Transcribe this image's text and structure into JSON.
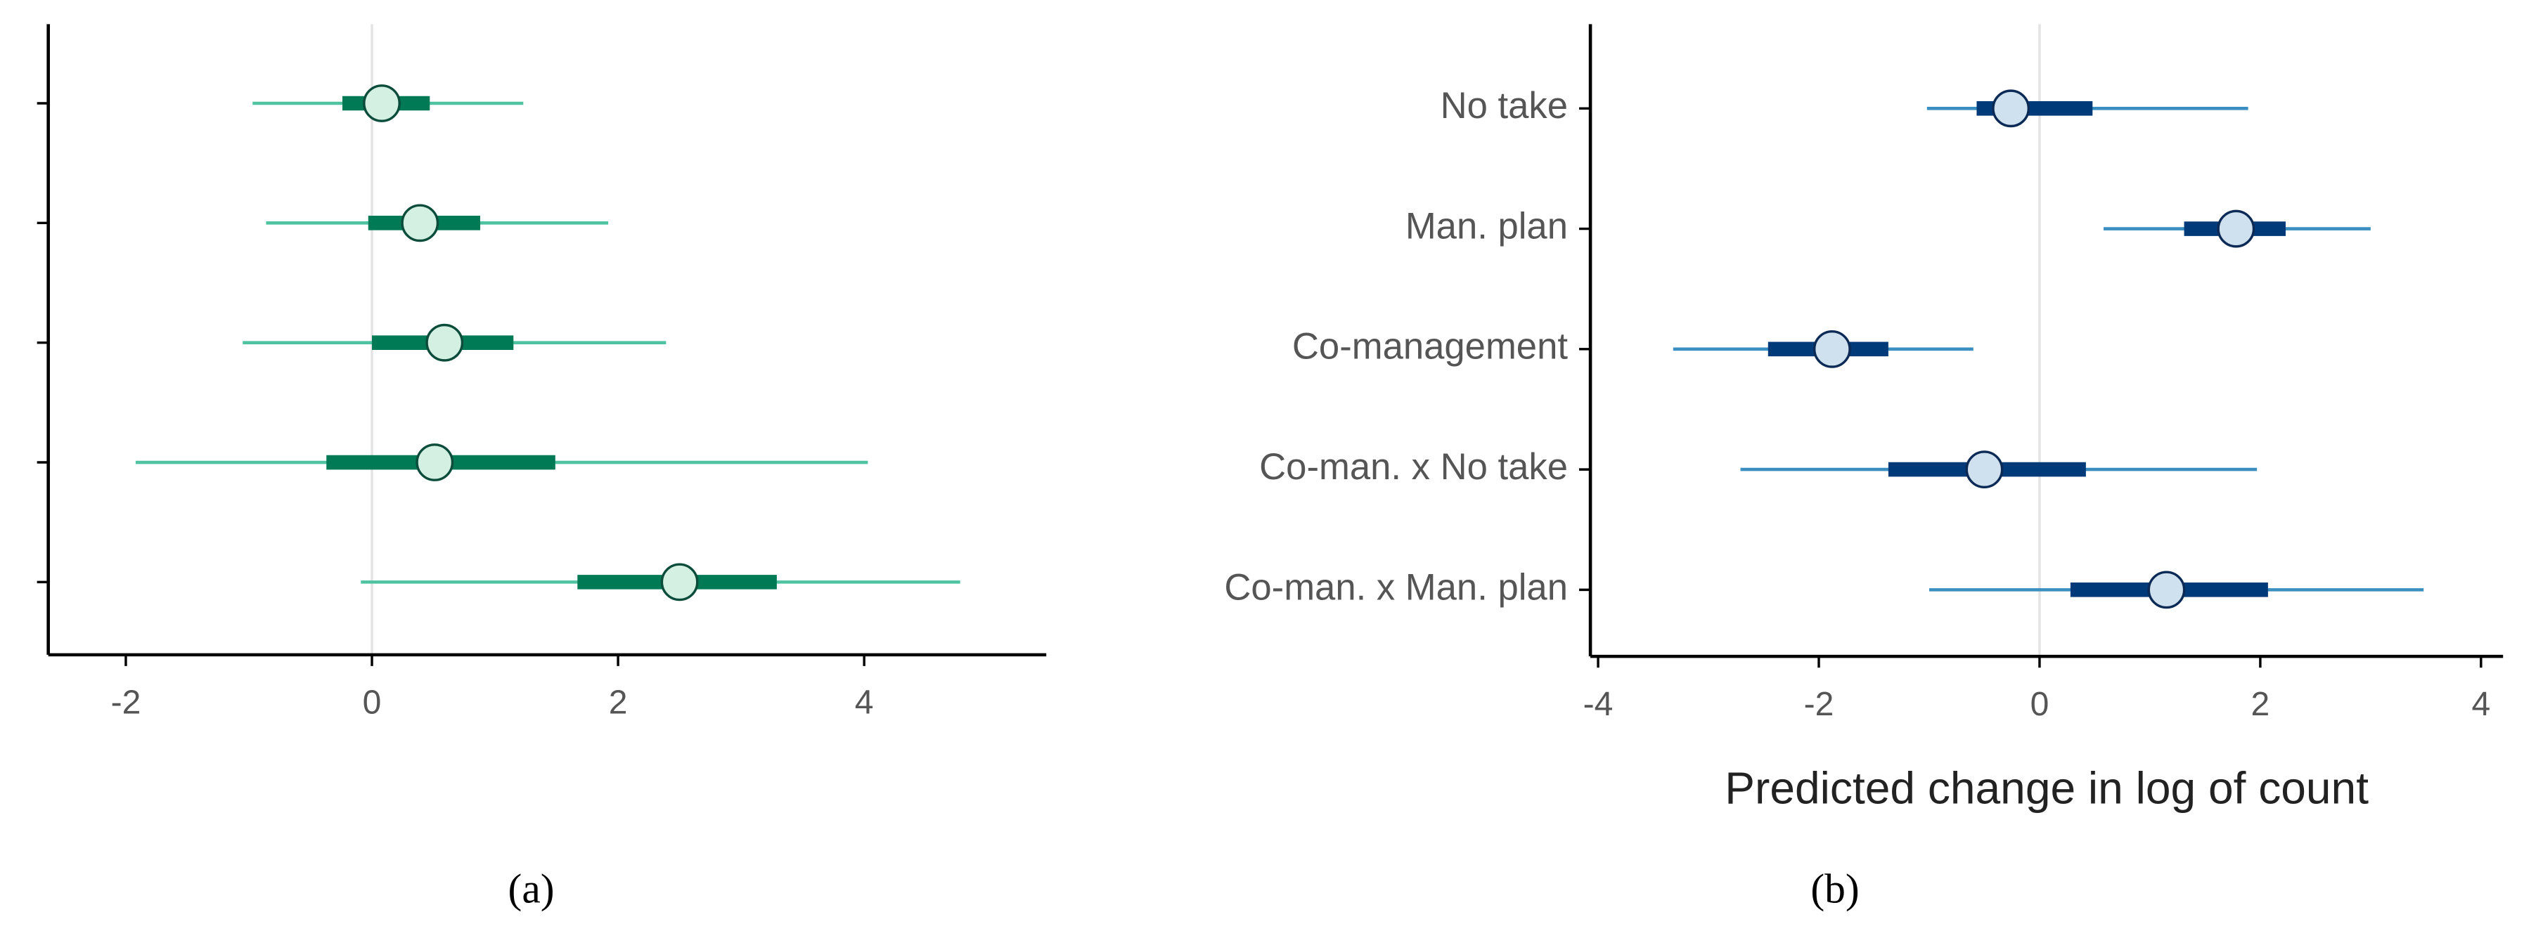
{
  "chart_data": [
    {
      "type": "forest",
      "caption": "(a)",
      "categories": [
        null,
        null,
        null,
        null,
        null
      ],
      "values": [
        0.08,
        0.39,
        0.59,
        0.51,
        2.5
      ],
      "low": [
        -0.97,
        -0.86,
        -1.05,
        -1.92,
        -0.09
      ],
      "high": [
        1.23,
        1.92,
        2.39,
        4.03,
        4.78
      ],
      "low_inner": [
        -0.24,
        -0.03,
        0,
        -0.37,
        1.67
      ],
      "high_inner": [
        0.47,
        0.88,
        1.15,
        1.49,
        3.29
      ],
      "xlim": [
        -2.63,
        5.48
      ],
      "xticks": [
        -2,
        0,
        2,
        4
      ],
      "refline": 0,
      "colors": {
        "outer": "#4fc3a1",
        "inner": "#007a55",
        "point": "#d4f0e3",
        "edge": "#0b4d3a"
      }
    },
    {
      "type": "forest",
      "caption": "(b)",
      "xlabel": "Predicted change in log of count",
      "categories": [
        "No take",
        "Man. plan",
        "Co-management",
        "Co-man. x No take",
        "Co-man. x Man. plan"
      ],
      "values": [
        -0.26,
        1.78,
        -1.88,
        -0.5,
        1.15
      ],
      "low": [
        -1.02,
        0.58,
        -3.32,
        -2.71,
        -1.0
      ],
      "high": [
        1.89,
        3.0,
        -0.6,
        1.97,
        3.48
      ],
      "low_inner": [
        -0.57,
        1.31,
        -2.46,
        -1.37,
        0.28
      ],
      "high_inner": [
        0.48,
        2.23,
        -1.37,
        0.42,
        2.07
      ],
      "xlim": [
        -4.07,
        4.2
      ],
      "xticks": [
        -4,
        -2,
        0,
        2,
        4
      ],
      "refline": 0,
      "colors": {
        "outer": "#3a8ec0",
        "inner": "#003a78",
        "point": "#cfe0ee",
        "edge": "#0b2a55"
      }
    }
  ]
}
